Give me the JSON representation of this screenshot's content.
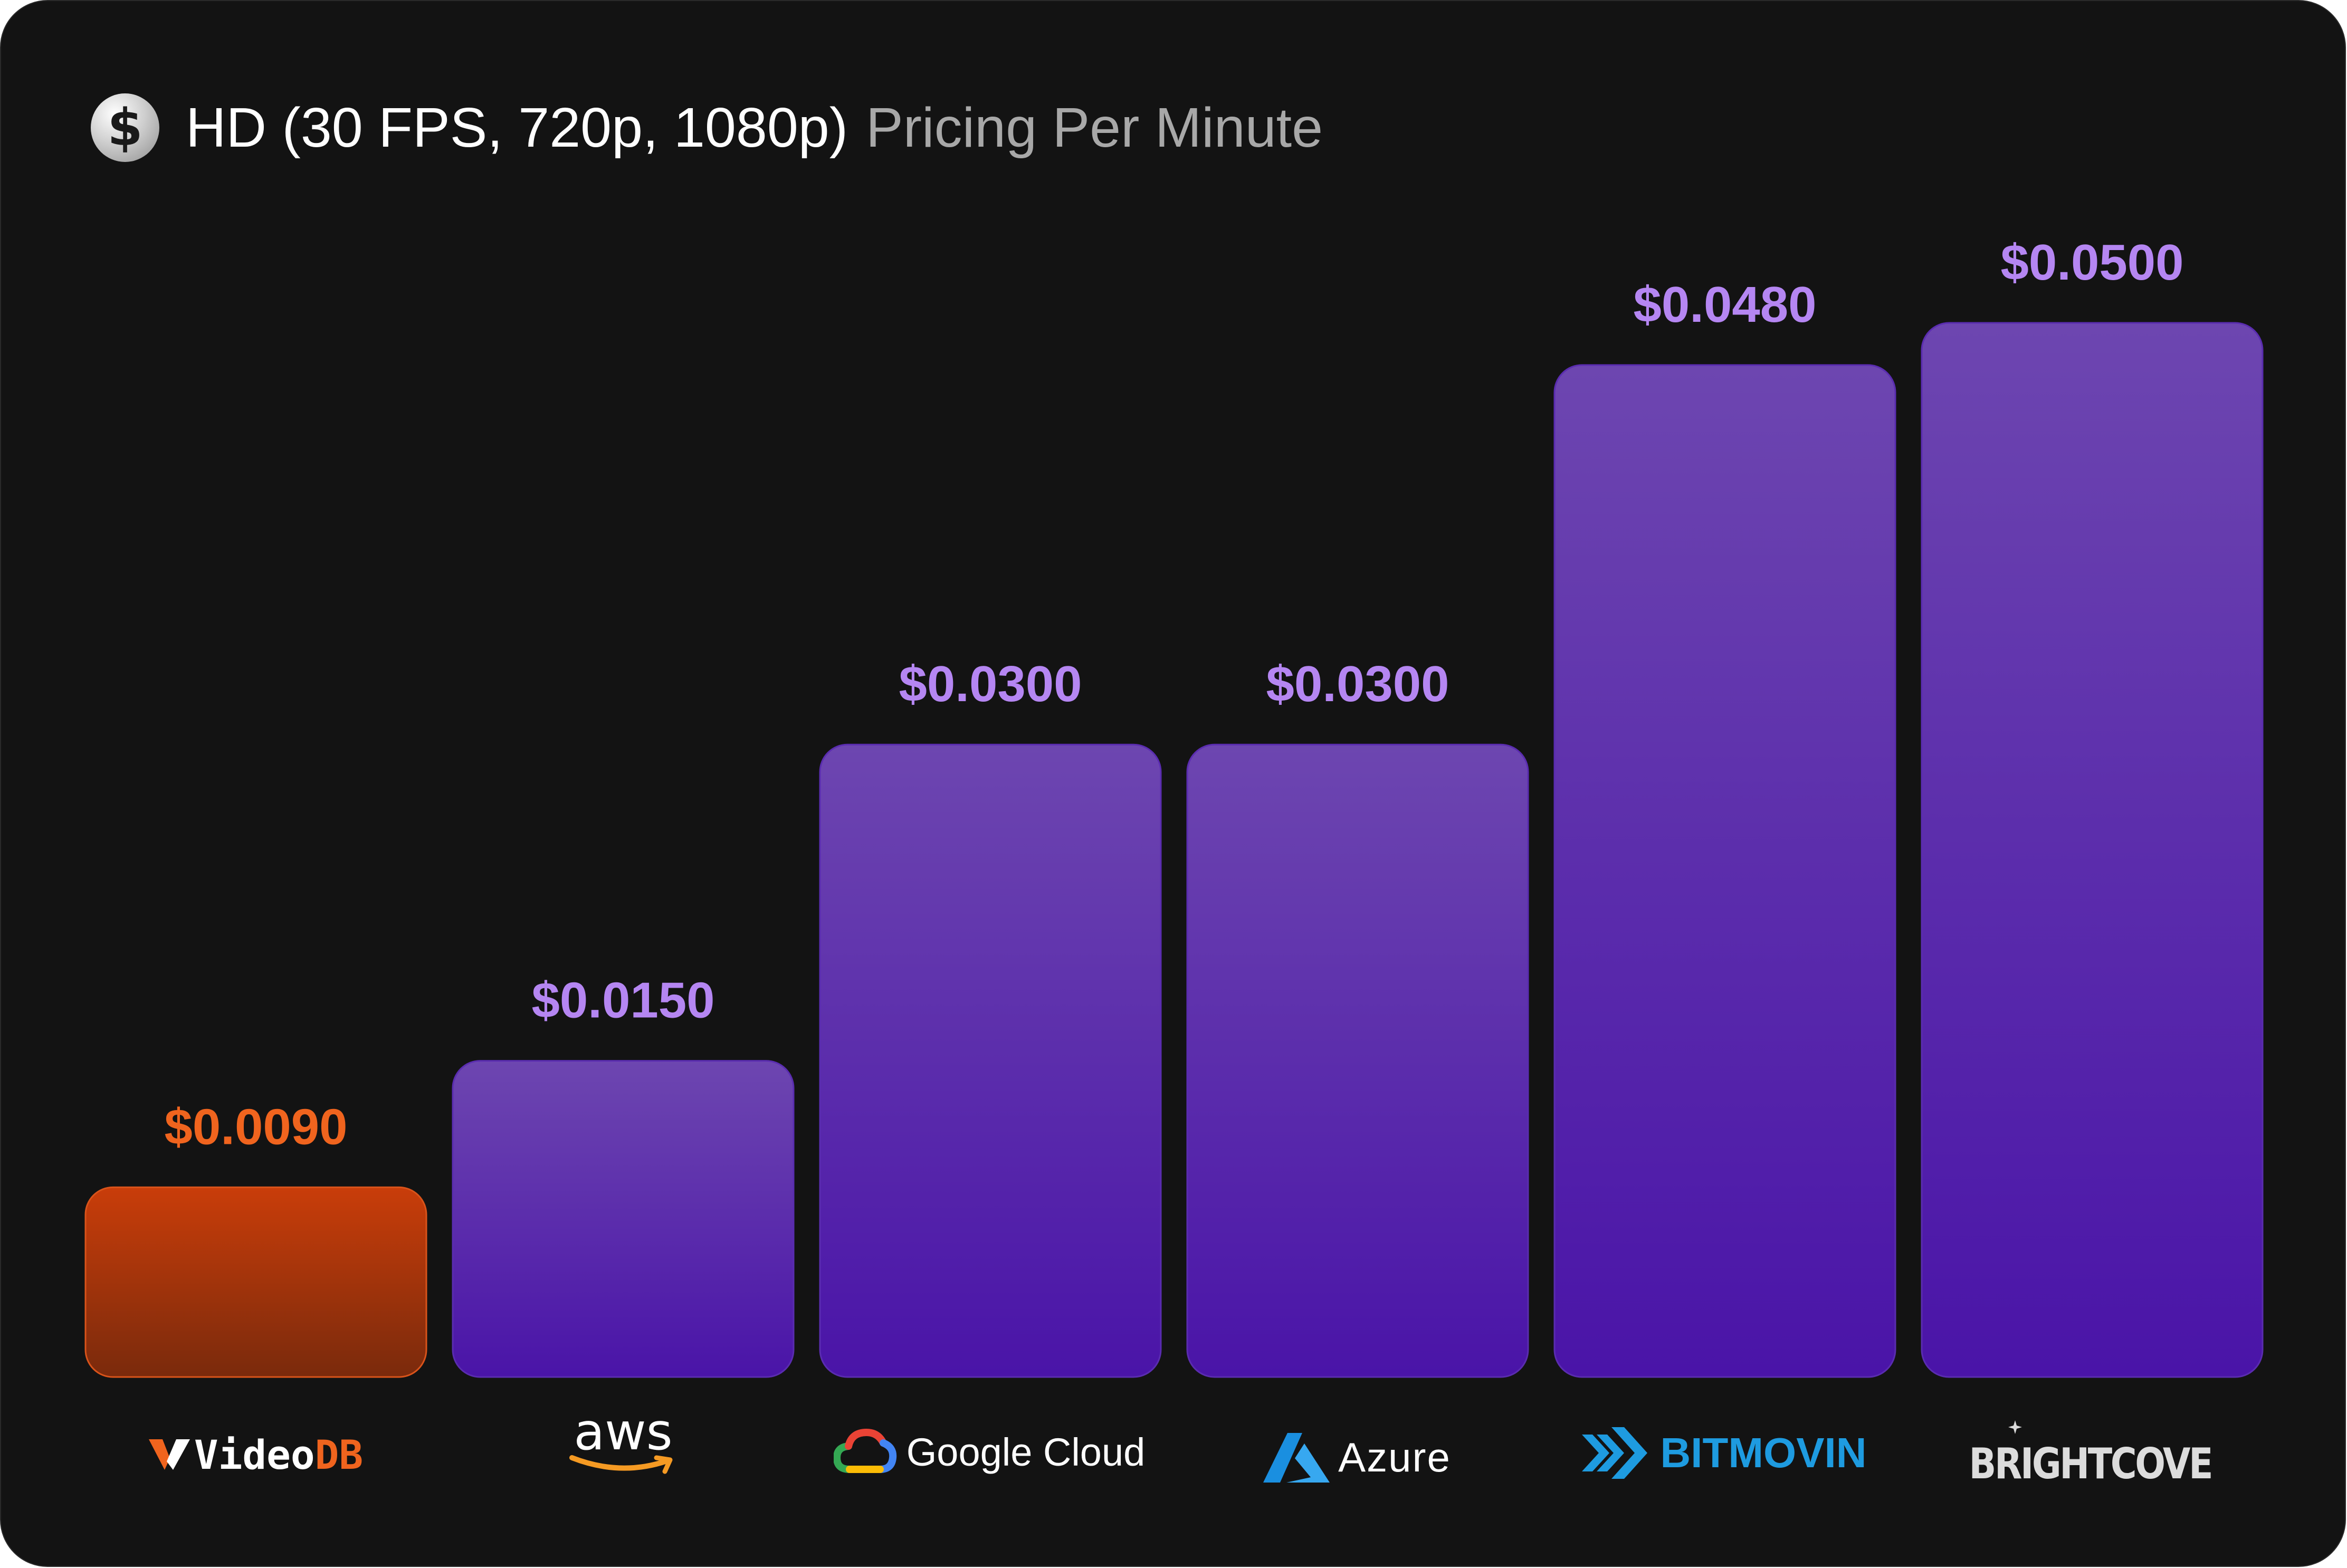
{
  "header": {
    "icon": "dollar-coin-icon",
    "icon_glyph": "$",
    "title": "HD (30 FPS, 720p, 1080p)",
    "subtitle": "Pricing Per Minute"
  },
  "chart_data": {
    "type": "bar",
    "title": "HD (30 FPS, 720p, 1080p) Pricing Per Minute",
    "xlabel": "",
    "ylabel": "",
    "categories": [
      "VideoDB",
      "aws",
      "Google Cloud",
      "Azure",
      "BITMOVIN",
      "BRIGHTCOVE"
    ],
    "values": [
      0.009,
      0.015,
      0.03,
      0.03,
      0.048,
      0.05
    ],
    "value_labels": [
      "$0.0090",
      "$0.0150",
      "$0.0300",
      "$0.0300",
      "$0.0480",
      "$0.0500"
    ],
    "ylim": [
      0,
      0.05
    ],
    "grid": false,
    "colors": {
      "highlight_top": "#c93d0a",
      "highlight_bottom": "#7a2a0c",
      "highlight_label": "#f0641e",
      "bar_top": "#6d46b0",
      "bar_bottom": "#4a14a8",
      "label": "#b586f2"
    }
  },
  "logos": {
    "videodb": {
      "prefix": "Video",
      "suffix": "DB",
      "icon": "videodb-v-icon"
    },
    "aws": {
      "text": "aws",
      "icon": "amazon-smile-arrow-icon"
    },
    "google": {
      "text": "Google Cloud",
      "icon": "google-cloud-icon"
    },
    "azure": {
      "text": "Azure",
      "icon": "azure-a-icon"
    },
    "bitmovin": {
      "text": "BITMOVIN",
      "icon": "bitmovin-chevrons-icon"
    },
    "brightcove": {
      "text": "BRIGHTCOVE",
      "icon": "brightcove-star-icon"
    }
  },
  "colors": {
    "card_bg": "#131313",
    "azure_blue": "#1a8fe0",
    "bitmovin_blue": "#1e9be0",
    "aws_orange": "#f59a23",
    "videodb_orange": "#f0641e"
  }
}
